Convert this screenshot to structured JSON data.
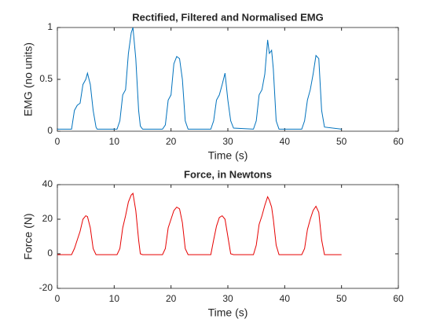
{
  "chart_data": [
    {
      "type": "line",
      "title": "Rectified, Filtered and Normalised EMG",
      "x_label": "Time (s)",
      "y_label": "EMG (no units)",
      "xlim": [
        0,
        60
      ],
      "xticks": [
        0,
        10,
        20,
        30,
        40,
        50,
        60
      ],
      "ylim": [
        0,
        1
      ],
      "yticks": [
        0,
        0.5,
        1
      ],
      "series": [
        {
          "color": "#0072bd",
          "x": [
            0,
            2.5,
            3,
            3.5,
            4,
            4.5,
            5,
            5.3,
            5.8,
            6.3,
            6.8,
            7,
            10.5,
            11,
            11.5,
            12,
            12.5,
            13,
            13.3,
            13.8,
            14.3,
            14.6,
            15,
            18.5,
            19,
            19.5,
            20,
            20.5,
            21,
            21.5,
            22,
            22.5,
            23,
            27,
            27.5,
            28,
            28.5,
            29,
            29.5,
            30,
            30.5,
            31,
            34.5,
            35,
            35.5,
            36,
            36.5,
            37,
            37.3,
            37.7,
            38,
            38.5,
            39,
            43,
            43.5,
            44,
            44.5,
            45,
            45.5,
            46,
            46.5,
            47,
            50
          ],
          "values": [
            0.02,
            0.02,
            0.2,
            0.25,
            0.27,
            0.45,
            0.5,
            0.56,
            0.45,
            0.2,
            0.04,
            0.02,
            0.02,
            0.1,
            0.35,
            0.4,
            0.75,
            0.95,
            1.0,
            0.7,
            0.2,
            0.05,
            0.02,
            0.02,
            0.06,
            0.3,
            0.35,
            0.65,
            0.72,
            0.7,
            0.5,
            0.1,
            0.02,
            0.02,
            0.1,
            0.3,
            0.35,
            0.45,
            0.56,
            0.3,
            0.1,
            0.03,
            0.02,
            0.1,
            0.35,
            0.4,
            0.55,
            0.88,
            0.75,
            0.78,
            0.6,
            0.1,
            0.02,
            0.02,
            0.1,
            0.3,
            0.4,
            0.55,
            0.73,
            0.7,
            0.2,
            0.04,
            0.02
          ]
        }
      ]
    },
    {
      "type": "line",
      "title": "Force, in Newtons",
      "x_label": "Time (s)",
      "y_label": "Force (N)",
      "xlim": [
        0,
        60
      ],
      "xticks": [
        0,
        10,
        20,
        30,
        40,
        50,
        60
      ],
      "ylim": [
        -20,
        40
      ],
      "yticks": [
        -20,
        0,
        20,
        40
      ],
      "series": [
        {
          "color": "#e60000",
          "x": [
            0,
            2.5,
            3,
            3.5,
            4,
            4.5,
            5,
            5.3,
            5.8,
            6.3,
            6.8,
            7,
            10.5,
            11,
            11.5,
            12,
            12.5,
            13,
            13.3,
            13.8,
            14.3,
            14.6,
            15,
            18.5,
            19,
            19.5,
            20,
            20.5,
            21,
            21.5,
            22,
            22.5,
            23,
            27,
            27.5,
            28,
            28.5,
            29,
            29.5,
            30,
            30.5,
            31,
            34.5,
            35,
            35.5,
            36,
            36.5,
            37,
            37.3,
            37.7,
            38,
            38.5,
            39,
            43,
            43.5,
            44,
            44.5,
            45,
            45.5,
            46,
            46.5,
            47,
            50
          ],
          "values": [
            -0.5,
            -0.5,
            3,
            8,
            13,
            20,
            22,
            21.5,
            15,
            3,
            -0.5,
            -0.5,
            -0.5,
            3,
            15,
            22,
            30,
            34,
            35,
            25,
            8,
            0,
            -0.5,
            -0.5,
            3,
            15,
            20,
            25,
            27,
            26,
            18,
            3,
            -0.5,
            -0.5,
            8,
            16,
            21,
            22,
            20,
            10,
            0,
            -0.5,
            -0.5,
            5,
            17,
            22,
            28,
            33,
            31,
            27,
            20,
            5,
            -0.5,
            -0.5,
            3,
            14,
            20,
            25,
            27.5,
            24,
            8,
            -0.5,
            -0.5
          ]
        }
      ]
    }
  ]
}
